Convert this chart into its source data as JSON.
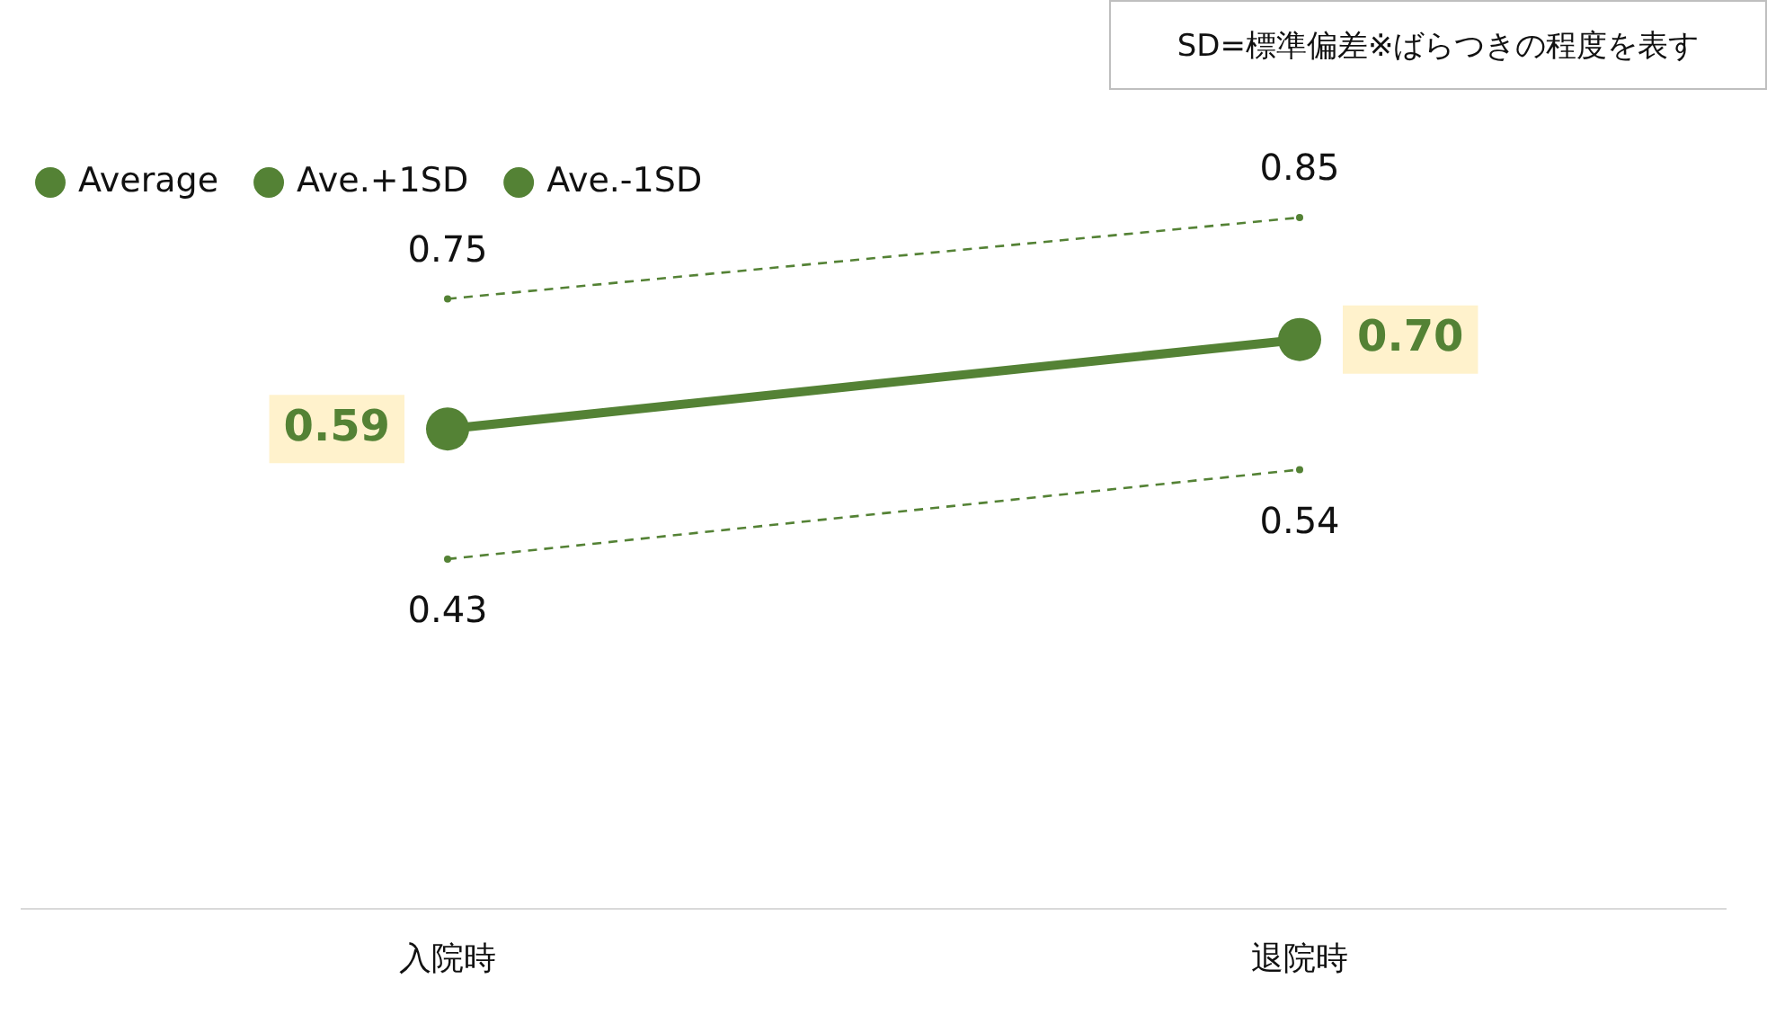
{
  "chart_data": {
    "type": "line",
    "categories": [
      "入院時",
      "退院時"
    ],
    "series": [
      {
        "name": "Average",
        "color": "#548235",
        "values": [
          0.59,
          0.7
        ],
        "value_labels": [
          "0.59",
          "0.70"
        ],
        "line_style": "solid"
      },
      {
        "name": "Ave.+1SD",
        "color": "#548235",
        "values": [
          0.75,
          0.85
        ],
        "value_labels": [
          "0.75",
          "0.85"
        ],
        "line_style": "dashed"
      },
      {
        "name": "Ave.-1SD",
        "color": "#548235",
        "values": [
          0.43,
          0.54
        ],
        "value_labels": [
          "0.43",
          "0.54"
        ],
        "line_style": "dashed"
      }
    ],
    "tick_labels": "x",
    "grid": false,
    "legend": "top left",
    "marker": "circle",
    "annotations": [
      "SD=標準偏差※ばらつきの程度を表す"
    ]
  }
}
